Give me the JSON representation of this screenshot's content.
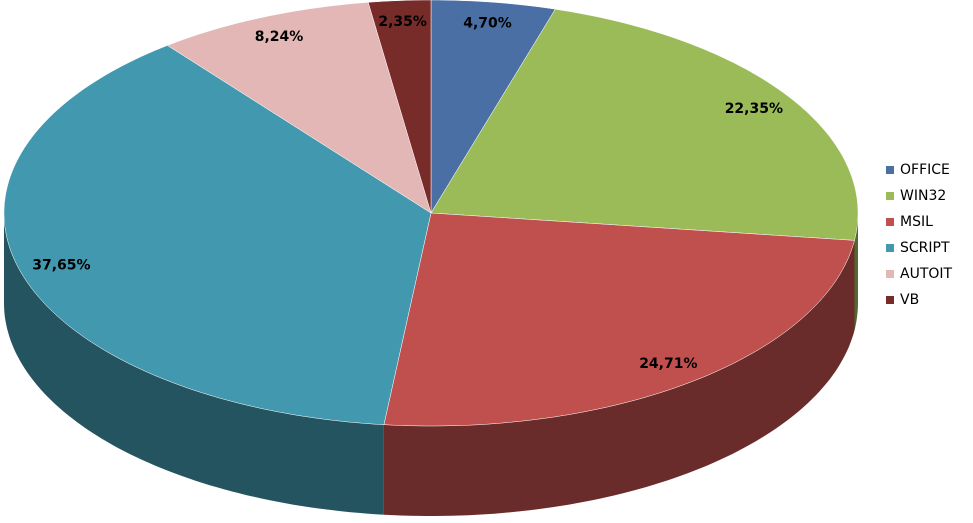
{
  "chart_data": {
    "type": "pie",
    "categories": [
      "OFFICE",
      "WIN32",
      "MSIL",
      "SCRIPT",
      "AUTOIT",
      "VB"
    ],
    "values": [
      4.7,
      22.35,
      24.71,
      37.65,
      8.24,
      2.35
    ],
    "value_labels": [
      "4,70%",
      "22,35%",
      "24,71%",
      "37,65%",
      "8,24%",
      "2,35%"
    ],
    "colors": [
      "#4a6fa5",
      "#9bbb59",
      "#c0504d",
      "#4198af",
      "#e2b7b6",
      "#772c2a"
    ],
    "legend": "right"
  }
}
